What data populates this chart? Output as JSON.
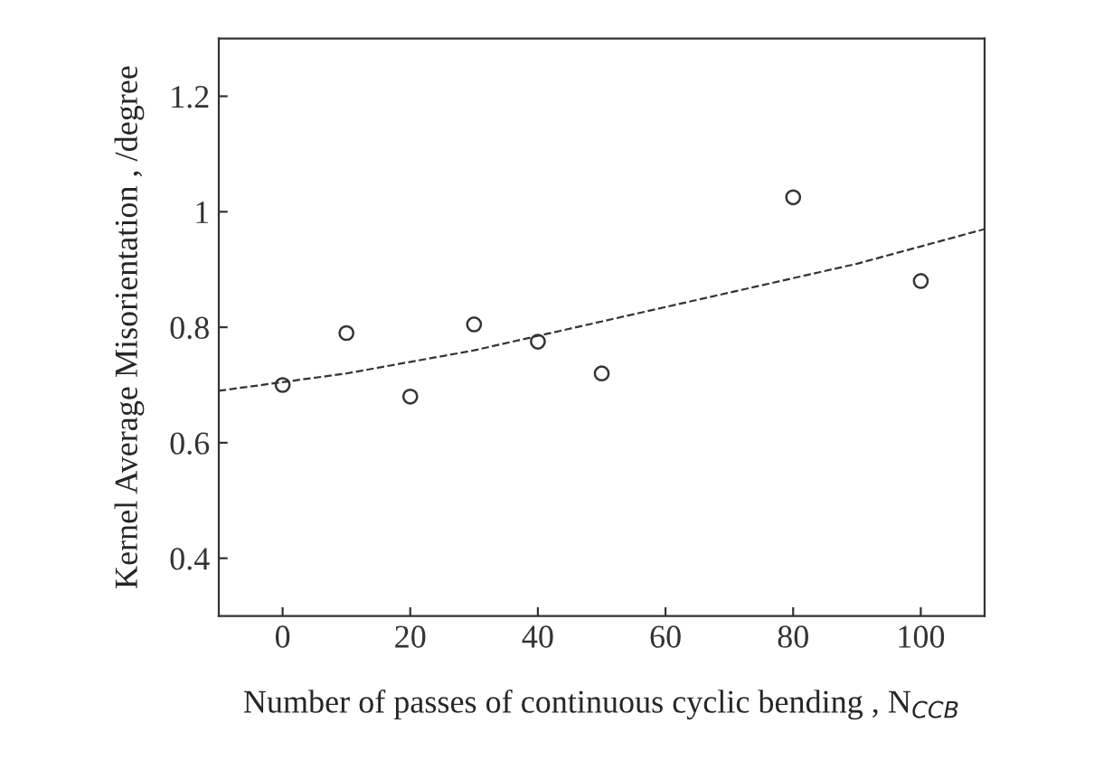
{
  "chart_data": {
    "type": "scatter",
    "xlabel": "Number of passes of continuous cyclic bending , N$_{CCB}$",
    "ylabel": "Kernel Average Misorientation , /degree",
    "xlim": [
      -10,
      110
    ],
    "ylim": [
      0.3,
      1.3
    ],
    "xticks": [
      0,
      20,
      40,
      60,
      80,
      100
    ],
    "yticks": [
      0.4,
      0.6,
      0.8,
      1,
      1.2
    ],
    "grid": false,
    "legend": false,
    "series": [
      {
        "marker": "circle",
        "color": "#333333",
        "x": [
          0,
          10,
          20,
          30,
          40,
          50,
          80,
          100
        ],
        "values": [
          0.7,
          0.79,
          0.68,
          0.805,
          0.775,
          0.72,
          1.025,
          0.88
        ]
      },
      {
        "type": "line",
        "marker": "none",
        "color": "#333333",
        "line_style": "dashed",
        "x": [
          -10,
          10,
          30,
          50,
          70,
          90,
          110
        ],
        "values": [
          0.69,
          0.72,
          0.76,
          0.81,
          0.86,
          0.91,
          0.97
        ]
      }
    ]
  }
}
